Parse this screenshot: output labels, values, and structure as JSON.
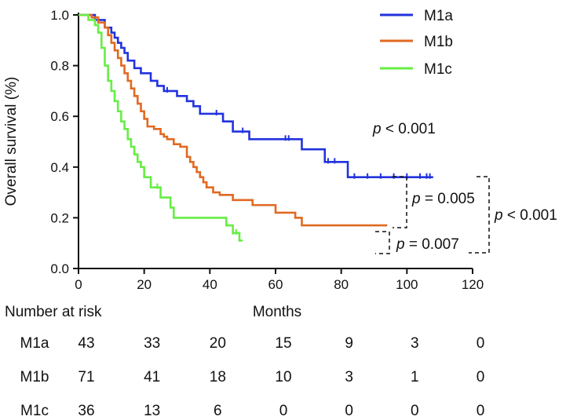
{
  "chart_data": {
    "type": "line",
    "subtype": "kaplan-meier",
    "ylabel": "Overall survival (%)",
    "xlabel": "Months",
    "xlim": [
      0,
      120
    ],
    "ylim": [
      0,
      1.0
    ],
    "xticks": [
      0,
      20,
      40,
      60,
      80,
      100,
      120
    ],
    "yticks": [
      0.0,
      0.2,
      0.4,
      0.6,
      0.8,
      1.0
    ],
    "xtick_labels": [
      "0",
      "20",
      "40",
      "60",
      "80",
      "100",
      "120"
    ],
    "ytick_labels": [
      "0.0",
      "0.2",
      "0.4",
      "0.6",
      "0.8",
      "1.0"
    ],
    "legend_position": "top-right",
    "series": [
      {
        "name": "M1a",
        "color": "#2233dd",
        "x": [
          0,
          5,
          8,
          10,
          11,
          12,
          13,
          14,
          15,
          17,
          19,
          22,
          24,
          25,
          26,
          28,
          30,
          33,
          35,
          37,
          40,
          44,
          47,
          52,
          58,
          68,
          75,
          80,
          82,
          108
        ],
        "y": [
          1.0,
          0.98,
          0.95,
          0.93,
          0.91,
          0.89,
          0.87,
          0.85,
          0.82,
          0.79,
          0.77,
          0.74,
          0.72,
          0.72,
          0.7,
          0.7,
          0.68,
          0.66,
          0.64,
          0.61,
          0.61,
          0.58,
          0.54,
          0.51,
          0.51,
          0.47,
          0.42,
          0.42,
          0.36,
          0.36
        ],
        "censor_x": [
          27,
          42,
          50,
          63,
          64,
          76,
          78,
          84,
          88,
          92,
          96,
          100,
          104,
          106,
          107
        ]
      },
      {
        "name": "M1b",
        "color": "#e06a22",
        "x": [
          0,
          4,
          6,
          8,
          9,
          10,
          11,
          12,
          13,
          14,
          15,
          16,
          17,
          18,
          19,
          20,
          21,
          23,
          25,
          26,
          27,
          29,
          31,
          32,
          33,
          34,
          35,
          36,
          37,
          38,
          39,
          41,
          43,
          45,
          47,
          49,
          53,
          60,
          66,
          68,
          94
        ],
        "y": [
          1.0,
          0.99,
          0.97,
          0.95,
          0.92,
          0.89,
          0.86,
          0.83,
          0.8,
          0.77,
          0.74,
          0.71,
          0.68,
          0.65,
          0.62,
          0.59,
          0.56,
          0.55,
          0.53,
          0.52,
          0.51,
          0.49,
          0.48,
          0.48,
          0.44,
          0.42,
          0.4,
          0.38,
          0.36,
          0.34,
          0.32,
          0.3,
          0.29,
          0.29,
          0.27,
          0.27,
          0.25,
          0.22,
          0.2,
          0.17,
          0.17
        ]
      },
      {
        "name": "M1c",
        "color": "#66ee44",
        "x": [
          0,
          3,
          5,
          6,
          7,
          8,
          9,
          10,
          11,
          12,
          13,
          14,
          15,
          16,
          17,
          18,
          19,
          20,
          22,
          23,
          25,
          26,
          28,
          29,
          31,
          35,
          45,
          47,
          49,
          50
        ],
        "y": [
          1.0,
          0.98,
          0.96,
          0.93,
          0.87,
          0.8,
          0.74,
          0.7,
          0.66,
          0.62,
          0.58,
          0.55,
          0.51,
          0.48,
          0.45,
          0.42,
          0.4,
          0.36,
          0.32,
          0.32,
          0.28,
          0.28,
          0.24,
          0.2,
          0.2,
          0.2,
          0.17,
          0.14,
          0.11,
          0.11
        ],
        "censor_x": [
          24,
          47,
          48
        ]
      }
    ],
    "annotations": [
      {
        "text": "p < 0.001",
        "label": "overall"
      },
      {
        "text": "p = 0.005",
        "label": "M1a vs M1b"
      },
      {
        "text": "p = 0.007",
        "label": "M1b vs M1c"
      },
      {
        "text": "p < 0.001",
        "label": "M1a vs M1c"
      }
    ]
  },
  "legend": [
    {
      "label": "M1a",
      "color": "#2233dd"
    },
    {
      "label": "M1b",
      "color": "#e06a22"
    },
    {
      "label": "M1c",
      "color": "#66ee44"
    }
  ],
  "pvalues": {
    "overall": {
      "symbol": "p",
      "text": " < 0.001"
    },
    "a_vs_b": {
      "symbol": "p",
      "text": " = 0.005"
    },
    "b_vs_c": {
      "symbol": "p",
      "text": " = 0.007"
    },
    "a_vs_c": {
      "symbol": "p",
      "text": " < 0.001"
    }
  },
  "risk_table": {
    "header": "Number at risk",
    "rows": [
      {
        "label": "M1a",
        "values": [
          "43",
          "33",
          "20",
          "15",
          "9",
          "3",
          "0"
        ]
      },
      {
        "label": "M1b",
        "values": [
          "71",
          "41",
          "18",
          "10",
          "3",
          "1",
          "0"
        ]
      },
      {
        "label": "M1c",
        "values": [
          "36",
          "13",
          "6",
          "0",
          "0",
          "0",
          "0"
        ]
      }
    ]
  }
}
